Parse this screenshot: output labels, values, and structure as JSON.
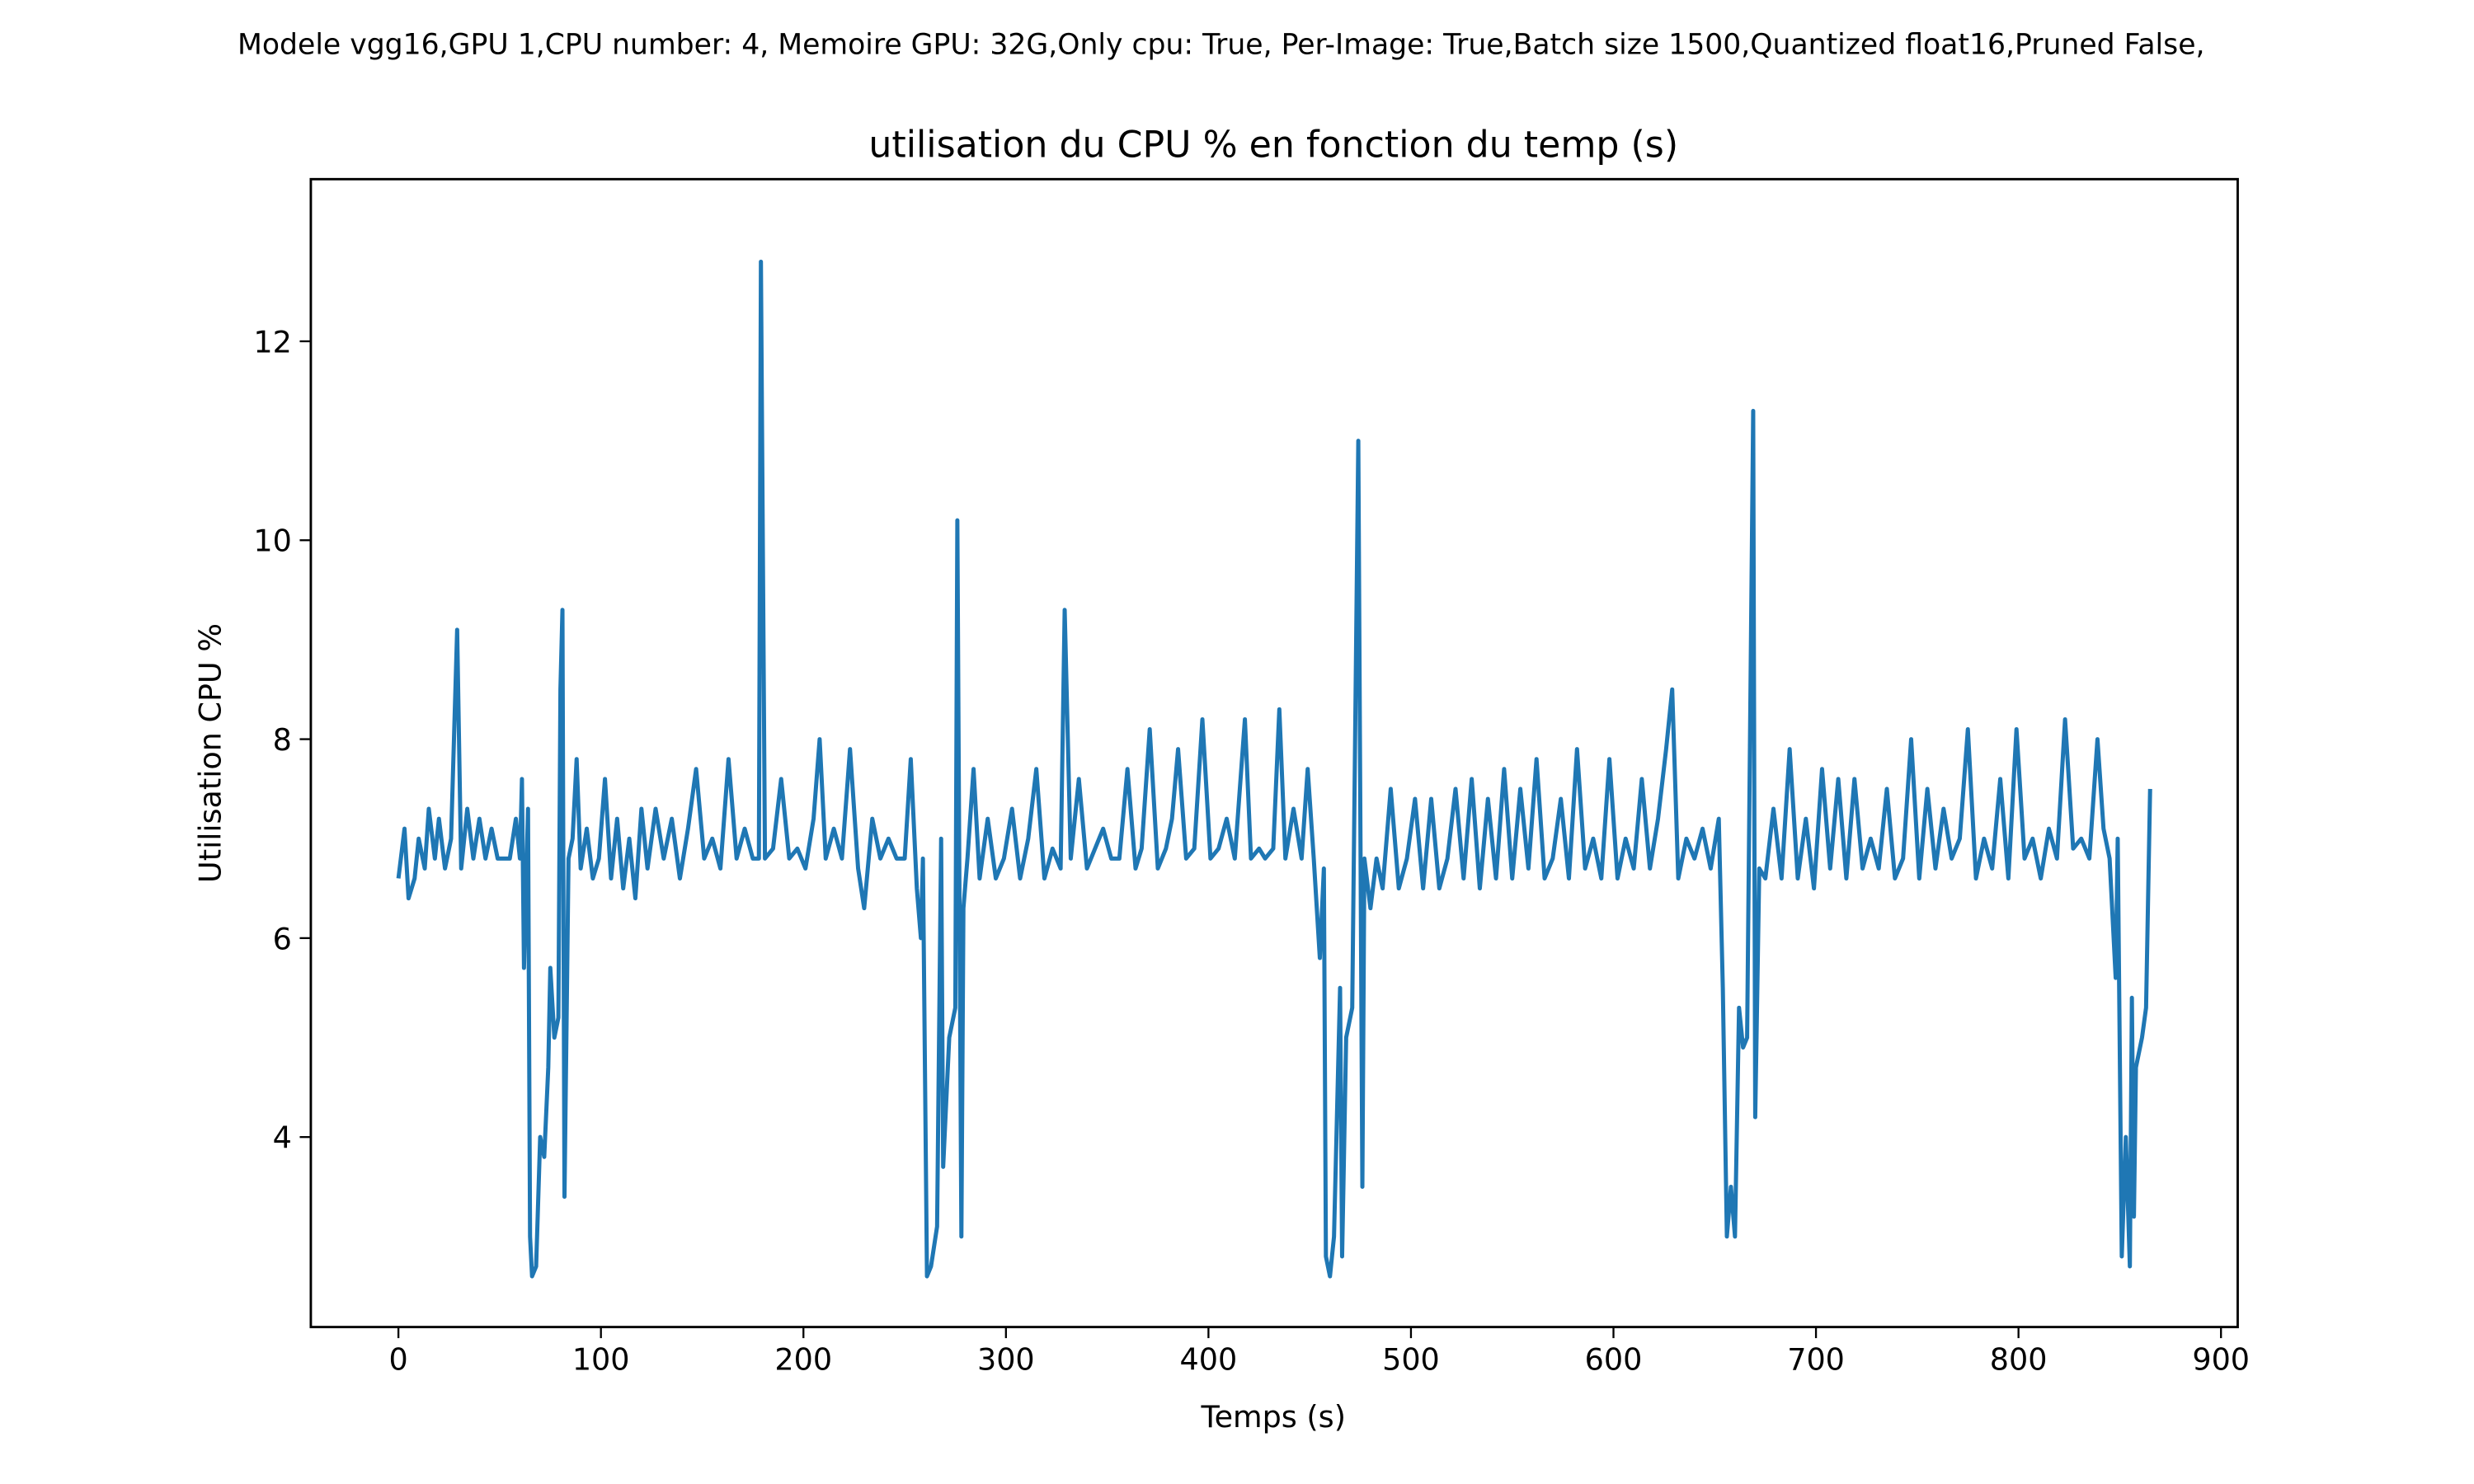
{
  "chart_data": {
    "type": "line",
    "suptitle": "Modele vgg16,GPU 1,CPU number: 4, Memoire GPU: 32G,Only cpu: True, Per-Image: True,Batch size 1500,Quantized float16,Pruned False,",
    "title": "utilisation du CPU % en fonction du temp (s)",
    "x_label": "Temps (s)",
    "y_label": "Utilisation CPU %",
    "xlim": [
      -43.25,
      908.25
    ],
    "ylim": [
      2.09,
      13.63
    ],
    "xticks": [
      0,
      100,
      200,
      300,
      400,
      500,
      600,
      700,
      800,
      900
    ],
    "yticks": [
      4,
      6,
      8,
      10,
      12
    ],
    "grid": false,
    "x": [
      0,
      3,
      5,
      8,
      10,
      13,
      15,
      18,
      20,
      23,
      26,
      29,
      31,
      34,
      37,
      40,
      43,
      46,
      49,
      52,
      55,
      58,
      60,
      61,
      62,
      64,
      65,
      66,
      68,
      70,
      72,
      74,
      75,
      77,
      79,
      80,
      81,
      82,
      84,
      86,
      88,
      90,
      93,
      96,
      99,
      102,
      105,
      108,
      111,
      114,
      117,
      120,
      123,
      127,
      131,
      135,
      139,
      143,
      147,
      151,
      155,
      159,
      163,
      167,
      171,
      175,
      178,
      179,
      181,
      185,
      189,
      193,
      197,
      201,
      205,
      208,
      211,
      215,
      219,
      223,
      227,
      230,
      234,
      238,
      242,
      246,
      250,
      253,
      256,
      258,
      259,
      261,
      263,
      266,
      268,
      269,
      272,
      275,
      276,
      278,
      279,
      281,
      284,
      287,
      291,
      295,
      299,
      303,
      307,
      311,
      315,
      319,
      323,
      327,
      329,
      332,
      336,
      340,
      344,
      348,
      352,
      356,
      360,
      364,
      367,
      371,
      375,
      379,
      382,
      385,
      389,
      393,
      397,
      401,
      405,
      409,
      413,
      418,
      421,
      425,
      428,
      432,
      435,
      438,
      442,
      446,
      449,
      452,
      455,
      457,
      458,
      460,
      462,
      465,
      466,
      468,
      471,
      474,
      476,
      477,
      480,
      483,
      486,
      490,
      494,
      498,
      502,
      506,
      510,
      514,
      518,
      522,
      526,
      530,
      534,
      538,
      542,
      546,
      550,
      554,
      558,
      562,
      566,
      570,
      574,
      578,
      582,
      586,
      590,
      594,
      598,
      602,
      606,
      610,
      614,
      618,
      622,
      626,
      629,
      632,
      636,
      640,
      644,
      648,
      652,
      654,
      656,
      658,
      660,
      662,
      664,
      666,
      669,
      670,
      672,
      675,
      679,
      683,
      687,
      691,
      695,
      699,
      703,
      707,
      711,
      715,
      719,
      723,
      727,
      731,
      735,
      739,
      743,
      747,
      751,
      755,
      759,
      763,
      767,
      771,
      775,
      779,
      783,
      787,
      791,
      795,
      799,
      803,
      807,
      811,
      815,
      819,
      823,
      827,
      831,
      835,
      839,
      842,
      845,
      848,
      849,
      851,
      853,
      855,
      856,
      857,
      858,
      861,
      863,
      865
    ],
    "series": [
      {
        "color": "#1f77b4",
        "values": [
          6.6,
          7.1,
          6.4,
          6.6,
          7.0,
          6.7,
          7.3,
          6.8,
          7.2,
          6.7,
          7.0,
          9.1,
          6.7,
          7.3,
          6.8,
          7.2,
          6.8,
          7.1,
          6.8,
          6.8,
          6.8,
          7.2,
          6.8,
          7.6,
          5.7,
          7.3,
          3.0,
          2.6,
          2.7,
          4.0,
          3.8,
          4.7,
          5.7,
          5.0,
          5.2,
          8.5,
          9.3,
          3.4,
          6.8,
          7.0,
          7.8,
          6.7,
          7.1,
          6.6,
          6.8,
          7.6,
          6.6,
          7.2,
          6.5,
          7.0,
          6.4,
          7.3,
          6.7,
          7.3,
          6.8,
          7.2,
          6.6,
          7.1,
          7.7,
          6.8,
          7.0,
          6.7,
          7.8,
          6.8,
          7.1,
          6.8,
          6.8,
          12.8,
          6.8,
          6.9,
          7.6,
          6.8,
          6.9,
          6.7,
          7.2,
          8.0,
          6.8,
          7.1,
          6.8,
          7.9,
          6.7,
          6.3,
          7.2,
          6.8,
          7.0,
          6.8,
          6.8,
          7.8,
          6.5,
          6.0,
          6.8,
          2.6,
          2.7,
          3.1,
          7.0,
          3.7,
          5.0,
          5.3,
          10.2,
          3.0,
          6.3,
          6.8,
          7.7,
          6.6,
          7.2,
          6.6,
          6.8,
          7.3,
          6.6,
          7.0,
          7.7,
          6.6,
          6.9,
          6.7,
          9.3,
          6.8,
          7.6,
          6.7,
          6.9,
          7.1,
          6.8,
          6.8,
          7.7,
          6.7,
          6.9,
          8.1,
          6.7,
          6.9,
          7.2,
          7.9,
          6.8,
          6.9,
          8.2,
          6.8,
          6.9,
          7.2,
          6.8,
          8.2,
          6.8,
          6.9,
          6.8,
          6.9,
          8.3,
          6.8,
          7.3,
          6.8,
          7.7,
          6.8,
          5.8,
          6.7,
          2.8,
          2.6,
          3.0,
          5.5,
          2.8,
          5.0,
          5.3,
          11.0,
          3.5,
          6.8,
          6.3,
          6.8,
          6.5,
          7.5,
          6.5,
          6.8,
          7.4,
          6.5,
          7.4,
          6.5,
          6.8,
          7.5,
          6.6,
          7.6,
          6.5,
          7.4,
          6.6,
          7.7,
          6.6,
          7.5,
          6.7,
          7.8,
          6.6,
          6.8,
          7.4,
          6.6,
          7.9,
          6.7,
          7.0,
          6.6,
          7.8,
          6.6,
          7.0,
          6.7,
          7.6,
          6.7,
          7.2,
          7.9,
          8.5,
          6.6,
          7.0,
          6.8,
          7.1,
          6.7,
          7.2,
          5.5,
          3.0,
          3.5,
          3.0,
          5.3,
          4.9,
          5.0,
          11.3,
          4.2,
          6.7,
          6.6,
          7.3,
          6.6,
          7.9,
          6.6,
          7.2,
          6.5,
          7.7,
          6.7,
          7.6,
          6.6,
          7.6,
          6.7,
          7.0,
          6.7,
          7.5,
          6.6,
          6.8,
          8.0,
          6.6,
          7.5,
          6.7,
          7.3,
          6.8,
          7.0,
          8.1,
          6.6,
          7.0,
          6.7,
          7.6,
          6.6,
          8.1,
          6.8,
          7.0,
          6.6,
          7.1,
          6.8,
          8.2,
          6.9,
          7.0,
          6.8,
          8.0,
          7.1,
          6.8,
          5.6,
          7.0,
          2.8,
          4.0,
          2.7,
          5.4,
          3.2,
          4.7,
          5.0,
          5.3,
          7.5
        ]
      }
    ]
  }
}
